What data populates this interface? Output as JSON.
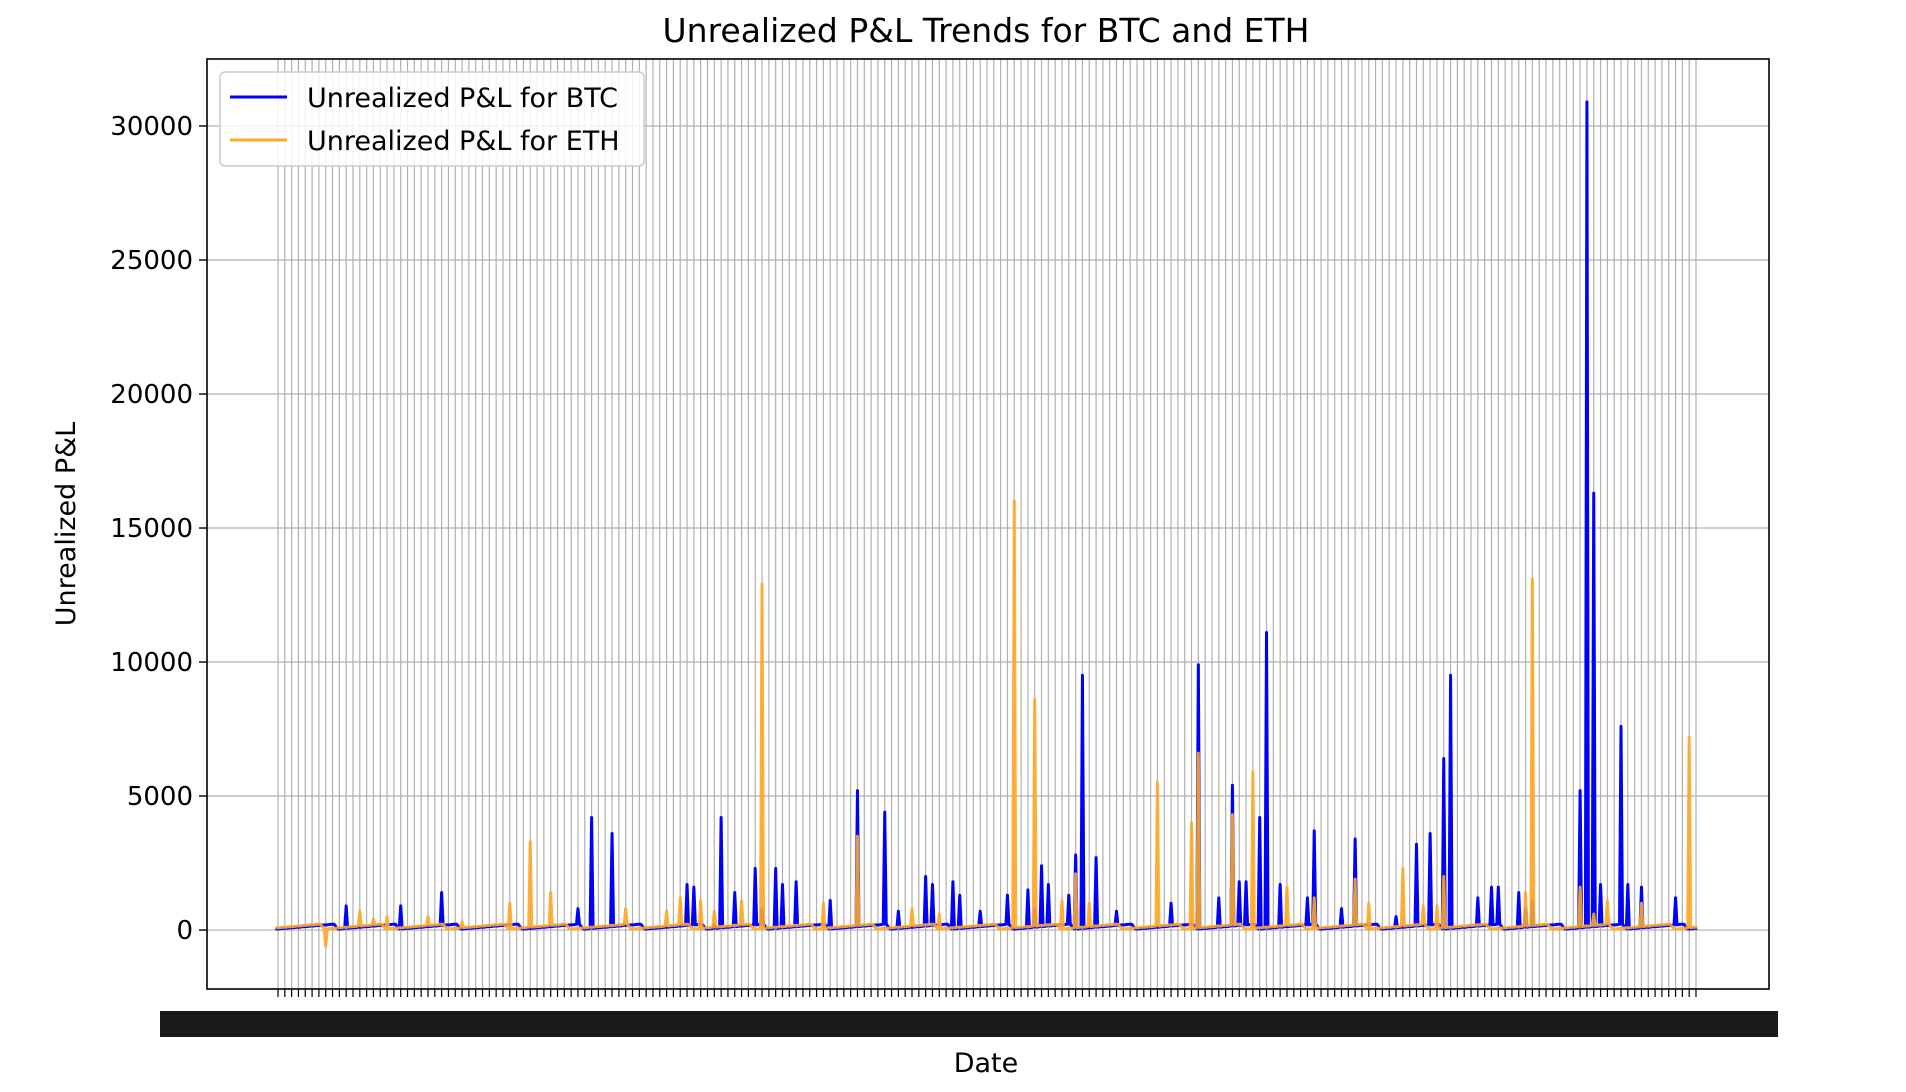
{
  "chart_data": {
    "type": "line",
    "title": "Unrealized P&L Trends for BTC and ETH",
    "xlabel": "Date",
    "ylabel": "Unrealized P&L",
    "ylim": [
      -2200,
      32500
    ],
    "yticks": [
      0,
      5000,
      10000,
      15000,
      20000,
      25000,
      30000
    ],
    "ytick_labels": [
      "0",
      "5000",
      "10000",
      "15000",
      "20000",
      "25000",
      "30000"
    ],
    "x_tick_labels_note": "dense unreadable date tick labels",
    "grid": true,
    "legend_position": "upper-left",
    "x_count": 209,
    "series": [
      {
        "name": "Unrealized P&L for BTC",
        "color": "#0000ff",
        "spikes": {
          "10": 900,
          "18": 900,
          "24": 1400,
          "44": 800,
          "46": 4200,
          "49": 3600,
          "60": 1700,
          "61": 1600,
          "64": 200,
          "65": 4200,
          "67": 1400,
          "70": 2300,
          "71": 800,
          "73": 2300,
          "74": 1700,
          "76": 1800,
          "81": 1100,
          "85": 5200,
          "89": 4400,
          "91": 700,
          "95": 2000,
          "96": 1700,
          "99": 1800,
          "100": 1300,
          "103": 700,
          "107": 1300,
          "110": 1500,
          "111": 800,
          "112": 2400,
          "113": 1700,
          "116": 1300,
          "117": 2800,
          "118": 9500,
          "120": 2700,
          "123": 700,
          "131": 1000,
          "135": 9900,
          "138": 1200,
          "140": 5400,
          "141": 1800,
          "142": 1800,
          "144": 4200,
          "145": 11100,
          "147": 1700,
          "151": 1200,
          "152": 3700,
          "156": 800,
          "158": 3400,
          "164": 500,
          "167": 3200,
          "169": 3600,
          "171": 6400,
          "172": 9500,
          "176": 1200,
          "178": 1600,
          "179": 1600,
          "182": 1400,
          "183": 800,
          "184": 1100,
          "191": 5200,
          "192": 30900,
          "193": 16300,
          "194": 1700,
          "197": 7600,
          "198": 1700,
          "200": 1600,
          "205": 1200
        }
      },
      {
        "name": "Unrealized P&L for ETH",
        "color": "#ffa726",
        "spikes": {
          "7": -600,
          "12": 700,
          "14": 400,
          "16": 500,
          "22": 500,
          "27": 300,
          "34": 1000,
          "37": 3300,
          "40": 1400,
          "51": 800,
          "57": 700,
          "59": 1200,
          "62": 1100,
          "64": 700,
          "68": 1100,
          "71": 12900,
          "80": 1000,
          "85": 3500,
          "93": 800,
          "97": 600,
          "108": 16000,
          "111": 8600,
          "115": 1100,
          "117": 2100,
          "119": 1000,
          "129": 5500,
          "134": 4000,
          "135": 6600,
          "140": 4300,
          "143": 5900,
          "148": 1600,
          "152": 1200,
          "158": 1900,
          "160": 1000,
          "165": 2300,
          "168": 900,
          "170": 900,
          "171": 2000,
          "183": 1400,
          "184": 13100,
          "191": 1600,
          "193": 600,
          "195": 1100,
          "200": 1000,
          "207": 7200
        }
      }
    ]
  },
  "legend": {
    "items": [
      "Unrealized P&L for BTC",
      "Unrealized P&L for ETH"
    ]
  }
}
